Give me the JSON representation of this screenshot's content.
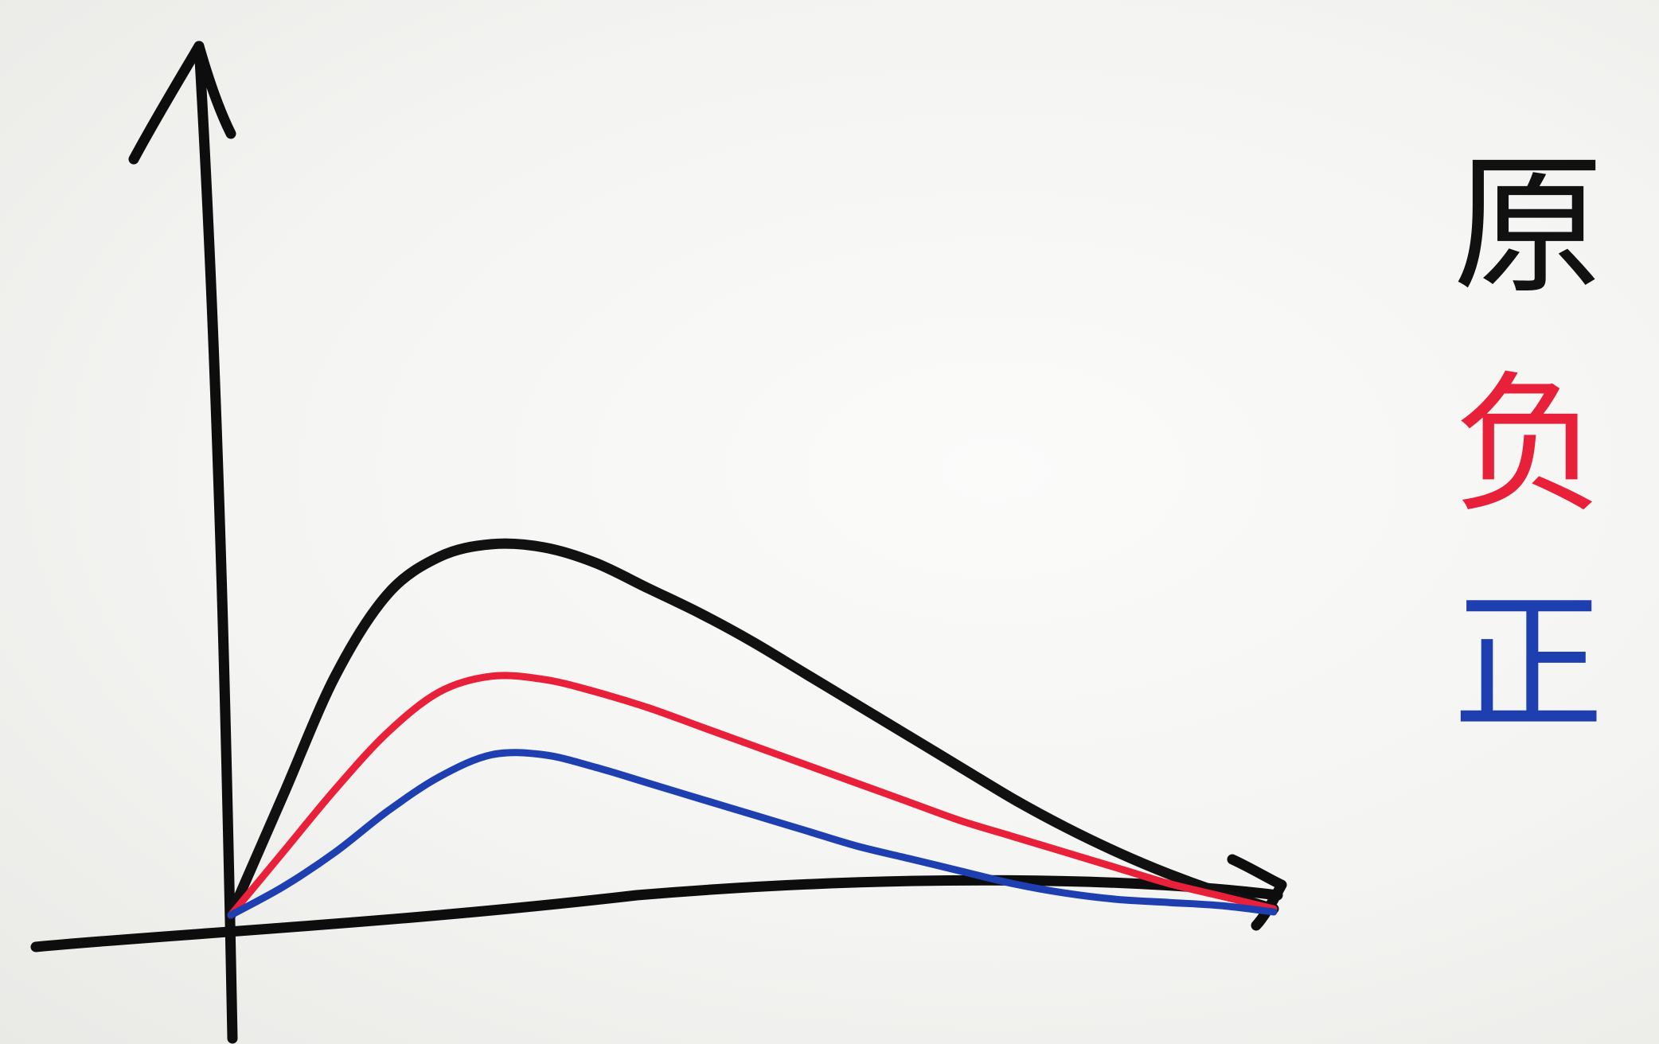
{
  "chart_data": {
    "type": "line",
    "title": "",
    "xlabel": "",
    "ylabel": "",
    "grid": false,
    "legend_placement": "right",
    "xlim": [
      0,
      10
    ],
    "ylim": [
      0,
      10
    ],
    "x": [
      0,
      0.5,
      1,
      1.5,
      2,
      2.5,
      3,
      3.5,
      4,
      4.5,
      5,
      5.5,
      6,
      6.5,
      7,
      7.5,
      8,
      8.5,
      9,
      9.5,
      10
    ],
    "series": [
      {
        "name": "原",
        "color": "#111111",
        "values": [
          0.0,
          1.9,
          3.8,
          5.1,
          5.7,
          5.9,
          5.85,
          5.6,
          5.2,
          4.8,
          4.35,
          3.85,
          3.35,
          2.85,
          2.35,
          1.85,
          1.4,
          1.0,
          0.65,
          0.35,
          0.1
        ]
      },
      {
        "name": "负",
        "color": "#e8203a",
        "values": [
          0.0,
          1.0,
          2.0,
          2.9,
          3.55,
          3.8,
          3.75,
          3.55,
          3.3,
          3.0,
          2.7,
          2.4,
          2.1,
          1.8,
          1.5,
          1.25,
          1.0,
          0.75,
          0.5,
          0.3,
          0.1
        ]
      },
      {
        "name": "正",
        "color": "#1d3fb0",
        "values": [
          0.0,
          0.45,
          1.0,
          1.65,
          2.2,
          2.55,
          2.55,
          2.35,
          2.1,
          1.85,
          1.6,
          1.35,
          1.1,
          0.9,
          0.7,
          0.5,
          0.35,
          0.25,
          0.2,
          0.15,
          0.05
        ]
      }
    ]
  }
}
